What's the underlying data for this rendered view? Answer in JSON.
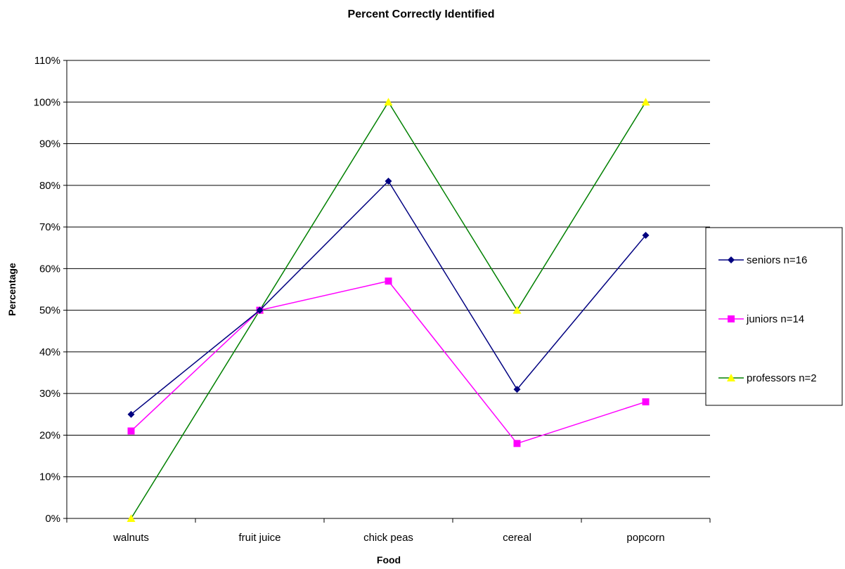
{
  "chart_data": {
    "type": "line",
    "title": "Percent Correctly Identified",
    "xlabel": "Food",
    "ylabel": "Percentage",
    "categories": [
      "walnuts",
      "fruit juice",
      "chick peas",
      "cereal",
      "popcorn"
    ],
    "ylim": [
      0,
      110
    ],
    "yticks": [
      0,
      10,
      20,
      30,
      40,
      50,
      60,
      70,
      80,
      90,
      100,
      110
    ],
    "ytick_labels": [
      "0%",
      "10%",
      "20%",
      "30%",
      "40%",
      "50%",
      "60%",
      "70%",
      "80%",
      "90%",
      "100%",
      "110%"
    ],
    "grid": true,
    "legend_position": "right",
    "series": [
      {
        "name": "seniors n=16",
        "values": [
          25,
          50,
          81,
          31,
          68
        ],
        "color": "#000080",
        "marker": "diamond"
      },
      {
        "name": "juniors n=14",
        "values": [
          21,
          50,
          57,
          18,
          28
        ],
        "color": "#ff00ff",
        "marker": "square"
      },
      {
        "name": "professors n=2",
        "values": [
          0,
          50,
          100,
          50,
          100
        ],
        "color": "#008000",
        "marker_color": "#ffff00",
        "marker": "triangle"
      }
    ]
  }
}
